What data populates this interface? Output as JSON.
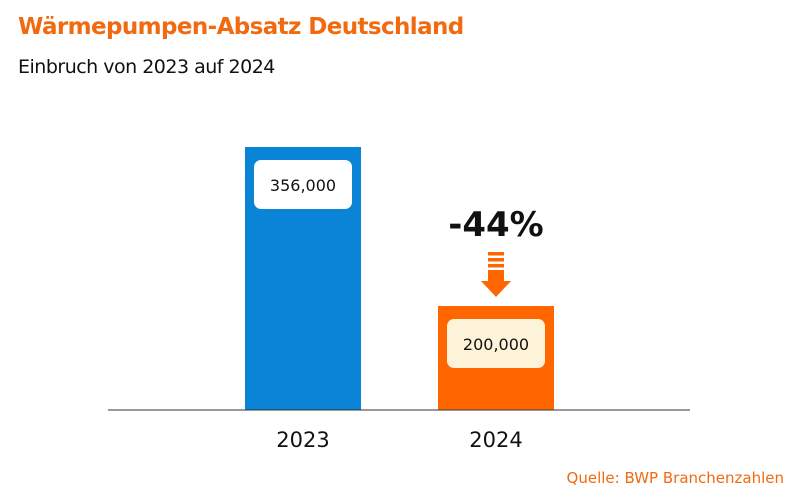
{
  "chart_data": {
    "type": "bar",
    "title": "Wärmepumpen-Absatz Deutschland",
    "subtitle": "Einbruch von 2023 auf 2024",
    "categories": [
      "2023",
      "2024"
    ],
    "values": [
      356000,
      200000
    ],
    "data_labels": [
      "356,000",
      "200,000"
    ],
    "colors": [
      "#0a84d6",
      "#ff6600"
    ],
    "label_box_colors": [
      "#ffffff",
      "#fdf3d8"
    ],
    "annotation": "-44%",
    "annotation_icon": "down-arrow-icon",
    "xlabel": "",
    "ylabel": "",
    "ylim": [
      98000,
      356000
    ],
    "grid": false,
    "source": "Quelle: BWP Branchenzahlen"
  }
}
